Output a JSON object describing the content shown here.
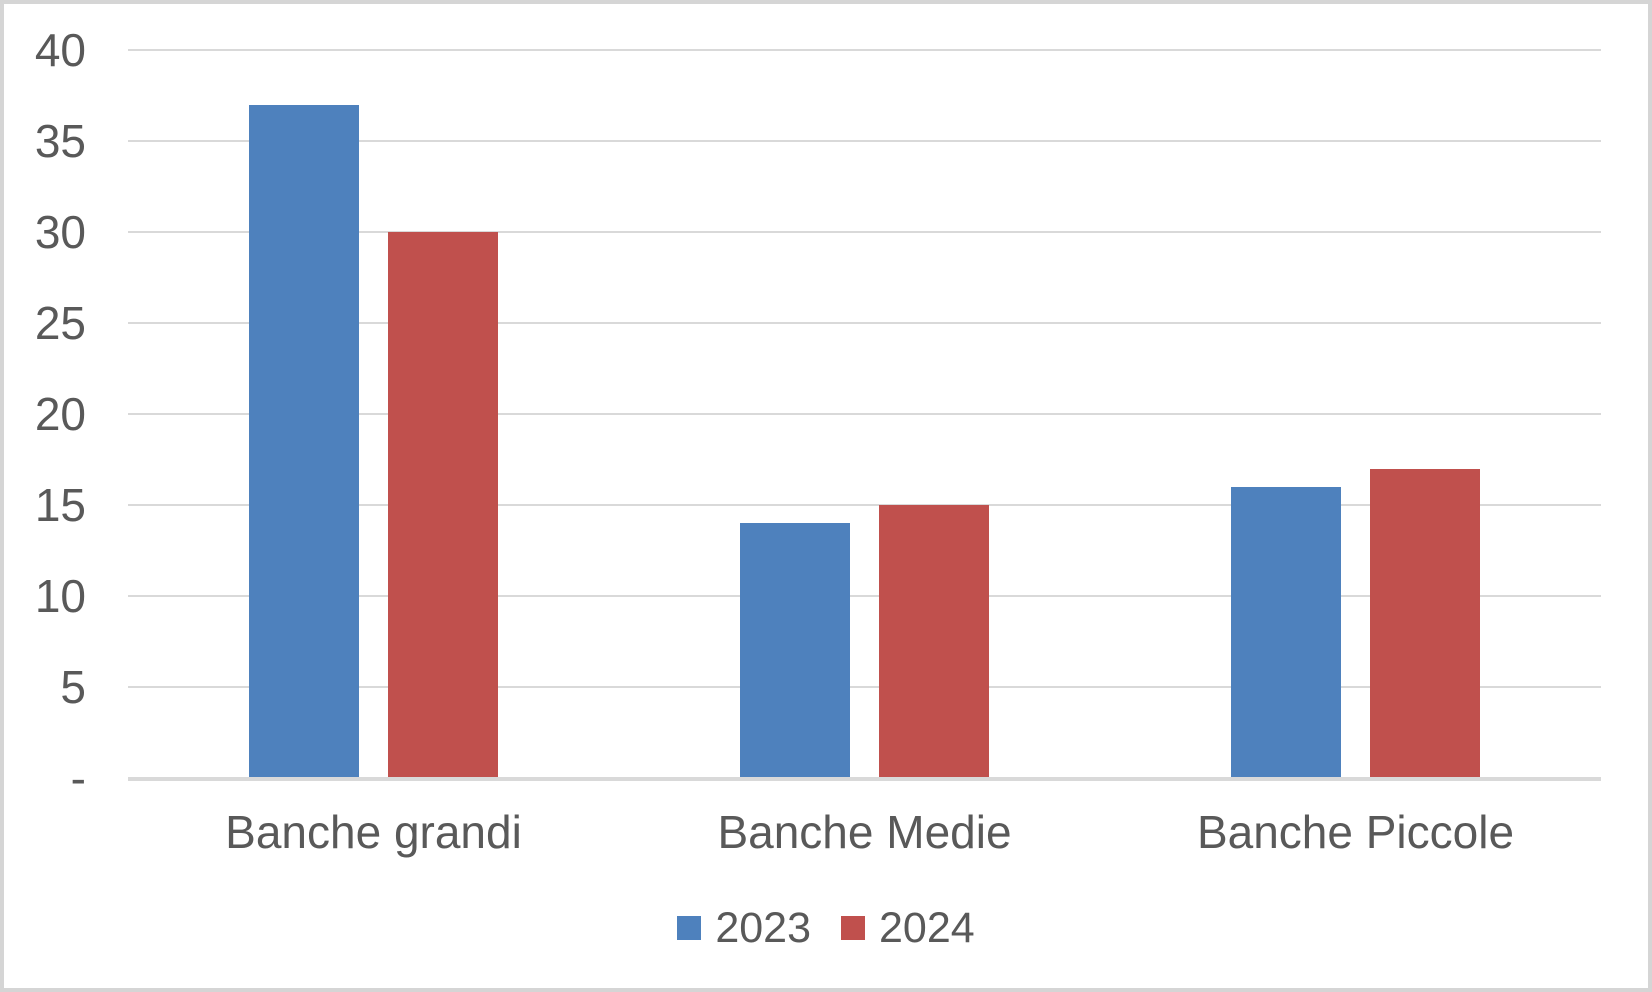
{
  "chart_data": {
    "type": "bar",
    "title": "",
    "xlabel": "",
    "ylabel": "",
    "categories": [
      "Banche grandi",
      "Banche Medie",
      "Banche Piccole"
    ],
    "series": [
      {
        "name": "2023",
        "color": "#4E81BD",
        "values": [
          37,
          14,
          16
        ]
      },
      {
        "name": "2024",
        "color": "#C0504D",
        "values": [
          30,
          15,
          17
        ]
      }
    ],
    "ylim": [
      0,
      40
    ],
    "ytick_step": 5,
    "yticks": [
      {
        "value": 0,
        "label": "-"
      },
      {
        "value": 5,
        "label": "5"
      },
      {
        "value": 10,
        "label": "10"
      },
      {
        "value": 15,
        "label": "15"
      },
      {
        "value": 20,
        "label": "20"
      },
      {
        "value": 25,
        "label": "25"
      },
      {
        "value": 30,
        "label": "30"
      },
      {
        "value": 35,
        "label": "35"
      },
      {
        "value": 40,
        "label": "40"
      }
    ],
    "grid": "horizontal",
    "legend_position": "bottom"
  },
  "style": {
    "series_colors": [
      "#4E81BD",
      "#C0504D"
    ],
    "grid_color": "#D9D9D9",
    "axis_line_color": "#D9D9D9",
    "text_color": "#595959",
    "frame_border_color": "#D5D5D5",
    "background": "#FFFFFF"
  }
}
